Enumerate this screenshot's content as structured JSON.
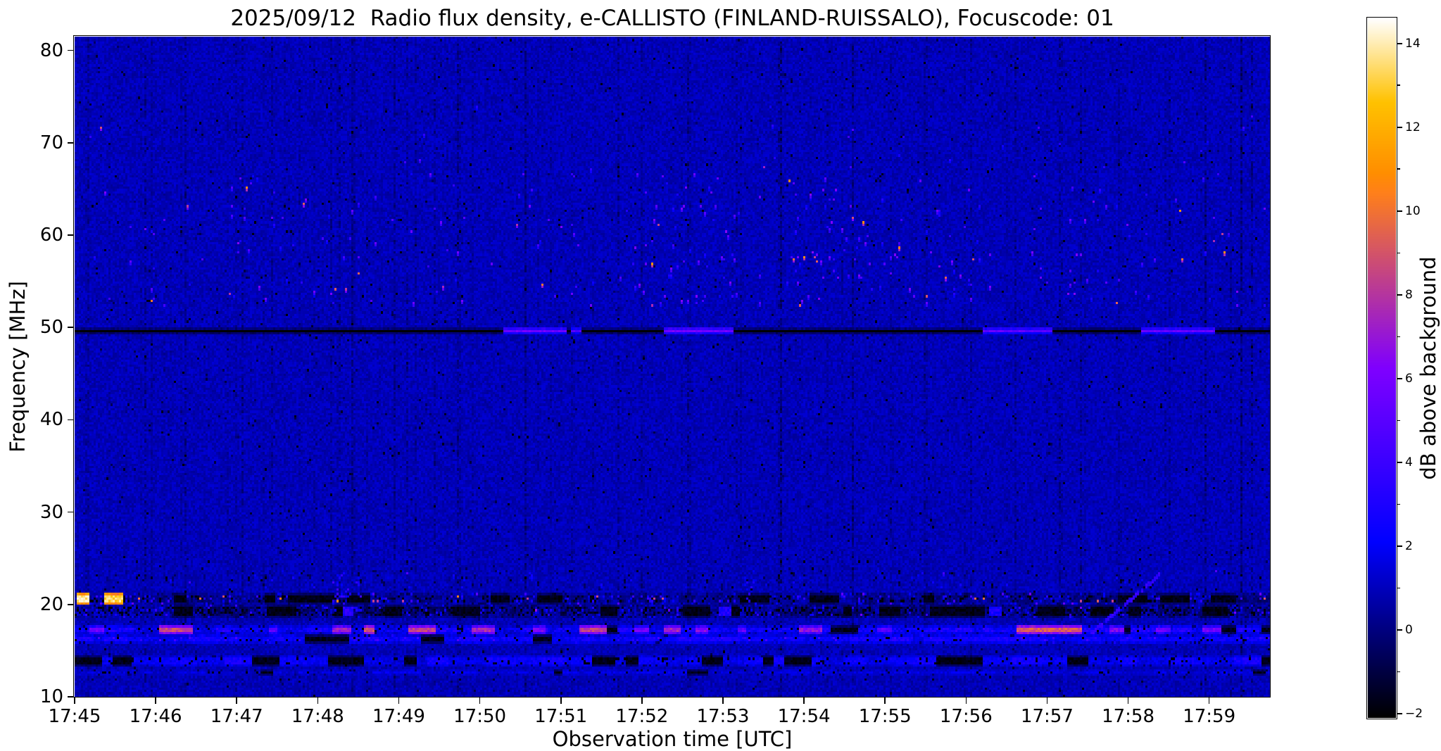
{
  "figure": {
    "background": "#ffffff",
    "text_color": "#000000"
  },
  "chart_data": {
    "type": "heatmap",
    "title": "2025/09/12  Radio flux density, e-CALLISTO (FINLAND-RUISSALO), Focuscode: 01",
    "xlabel": "Observation time [UTC]",
    "ylabel": "Frequency [MHz]",
    "x_tick_labels": [
      "17:45",
      "17:46",
      "17:47",
      "17:48",
      "17:49",
      "17:50",
      "17:51",
      "17:52",
      "17:53",
      "17:54",
      "17:55",
      "17:56",
      "17:57",
      "17:58",
      "17:59"
    ],
    "x_tick_minutes": [
      0,
      1,
      2,
      3,
      4,
      5,
      6,
      7,
      8,
      9,
      10,
      11,
      12,
      13,
      14
    ],
    "x_range_minutes": [
      0,
      14.75
    ],
    "y_tick_labels": [
      10,
      20,
      30,
      40,
      50,
      60,
      70,
      80
    ],
    "y_range_mhz": [
      10,
      81.5
    ],
    "grid": "off",
    "legend": "none",
    "colorbar": {
      "label": "dB above background",
      "tick_labels": [
        14,
        12,
        10,
        8,
        6,
        4,
        2,
        0,
        -2
      ],
      "minor_tick_step": 1,
      "vmin": -2.1,
      "vmax": 14.6,
      "colormap": "gnuplot2"
    },
    "spectrogram": {
      "seed": 1337,
      "grid_cols": 566,
      "grid_rows": 286,
      "background_value": 0.9,
      "noise_amplitude": 0.5,
      "dark_speckle_prob": 0.012,
      "column_artifacts": {
        "count": 80,
        "min_strength": 0.2,
        "max_strength": 1.0,
        "row_prob": 0.5
      },
      "dark_columns": [
        {
          "m": 0.95,
          "strength": 0.5
        },
        {
          "m": 3.42,
          "strength": 0.8
        },
        {
          "m": 5.55,
          "strength": 1.0
        },
        {
          "m": 9.6,
          "strength": 0.45
        },
        {
          "m": 12.9,
          "strength": 0.5
        }
      ],
      "speckle_regions": [
        {
          "f_min": 52.5,
          "f_max": 66.8,
          "per_col_prob": 0.55,
          "max_extra_dots": 2,
          "v_min": 2.2,
          "v_max": 6.5,
          "hot_prob": 0.1,
          "hot_v_min": 7.5,
          "hot_v_max": 11.5,
          "cluster_scale": 26
        },
        {
          "f_min": 66.8,
          "f_max": 74.0,
          "per_col_prob": 0.05,
          "max_extra_dots": 0,
          "v_min": 2.2,
          "v_max": 5.0,
          "hot_prob": 0.05,
          "hot_v_min": 7.0,
          "hot_v_max": 9.0,
          "cluster_scale": 40
        },
        {
          "f_min": 21.8,
          "f_max": 23.6,
          "per_col_prob": 0.45,
          "max_extra_dots": 1,
          "v_min": -1.8,
          "v_max": 2.6,
          "hot_prob": 0.01,
          "hot_v_min": 4.0,
          "hot_v_max": 6.0,
          "cluster_scale": 18
        }
      ],
      "rfi_line": {
        "f_center": 49.7,
        "base_value": -2.5,
        "bright_segments": [
          [
            5.28,
            6.08,
            5.6
          ],
          [
            6.12,
            6.26,
            4.8
          ],
          [
            7.28,
            8.12,
            5.9
          ],
          [
            11.2,
            12.08,
            5.3
          ],
          [
            13.18,
            14.08,
            5.5
          ]
        ]
      },
      "bands": [
        {
          "f_min": 20.1,
          "f_max": 21.05,
          "base_value": 0.1,
          "lf_amp": 0.6,
          "noise": 0.7,
          "dark_prob": 0.12,
          "dark_run_thresh": 0.22,
          "dot_prob": 0.1,
          "dot_v_min": 1.5,
          "dot_v_max": 4.0,
          "hot_prob": 0.02,
          "hot_v_min": 8.0,
          "hot_v_max": 10.5,
          "segments": [
            [
              0.02,
              0.18,
              13.6
            ],
            [
              0.35,
              0.6,
              13.2
            ]
          ]
        },
        {
          "f_min": 18.45,
          "f_max": 19.85,
          "base_value": -0.1,
          "lf_amp": 0.8,
          "noise": 0.9,
          "dark_prob": 0.2,
          "dark_run_thresh": 0.3,
          "dot_prob": 0.05,
          "dot_v_min": 1.5,
          "dot_v_max": 3.8,
          "hot_prob": 0.004,
          "hot_v_min": 5.0,
          "hot_v_max": 7.0,
          "segments": [
            [
              3.3,
              3.44,
              3.2
            ],
            [
              7.95,
              8.1,
              3.0
            ],
            [
              11.3,
              11.44,
              2.8
            ]
          ]
        },
        {
          "f_min": 16.75,
          "f_max": 17.65,
          "base_value": 2.3,
          "lf_amp": 0.8,
          "noise": 0.8,
          "dark_prob": 0.08,
          "dark_run_thresh": 0.13,
          "dot_prob": 0.0,
          "dot_v_min": 0,
          "dot_v_max": 0,
          "hot_prob": 0.0,
          "hot_v_min": 0,
          "hot_v_max": 0,
          "segments": [
            [
              0.17,
              0.35,
              5.5
            ],
            [
              1.04,
              1.44,
              8.6
            ],
            [
              2.38,
              2.5,
              5.2
            ],
            [
              3.17,
              3.4,
              7.2
            ],
            [
              3.57,
              3.69,
              9.0
            ],
            [
              4.11,
              4.44,
              8.2
            ],
            [
              4.9,
              5.18,
              7.6
            ],
            [
              5.64,
              5.82,
              6.2
            ],
            [
              6.22,
              6.57,
              8.4
            ],
            [
              6.91,
              7.08,
              5.6
            ],
            [
              7.26,
              7.49,
              7.4
            ],
            [
              7.66,
              7.83,
              6.4
            ],
            [
              8.18,
              8.3,
              5.2
            ],
            [
              8.93,
              9.22,
              6.8
            ],
            [
              9.9,
              10.08,
              5.2
            ],
            [
              11.64,
              12.44,
              9.2
            ],
            [
              12.79,
              12.96,
              6.2
            ],
            [
              13.36,
              13.53,
              5.6
            ],
            [
              13.94,
              14.17,
              5.8
            ]
          ]
        },
        {
          "f_min": 15.72,
          "f_max": 16.42,
          "base_value": 2.4,
          "lf_amp": 0.6,
          "noise": 0.6,
          "dark_prob": 0.04,
          "dark_run_thresh": 0.05,
          "dot_prob": 0.05,
          "dot_v_min": 3.2,
          "dot_v_max": 4.6,
          "hot_prob": 0.0,
          "hot_v_min": 0,
          "hot_v_max": 0,
          "segments": []
        },
        {
          "f_min": 13.15,
          "f_max": 14.3,
          "base_value": 1.9,
          "lf_amp": 0.8,
          "noise": 0.55,
          "dark_prob": 0.1,
          "dark_run_thresh": 0.2,
          "dot_prob": 0.0,
          "dot_v_min": 0,
          "dot_v_max": 0,
          "hot_prob": 0.0,
          "hot_v_min": 0,
          "hot_v_max": 0,
          "segments": []
        },
        {
          "f_min": 12.3,
          "f_max": 12.85,
          "base_value": 1.4,
          "lf_amp": 0.5,
          "noise": 0.5,
          "dark_prob": 0.06,
          "dark_run_thresh": 0.08,
          "dot_prob": 0.0,
          "dot_v_min": 0,
          "dot_v_max": 0,
          "hot_prob": 0.0,
          "hot_v_min": 0,
          "hot_v_max": 0,
          "segments": []
        }
      ],
      "diagonals": [
        {
          "m0": 12.55,
          "f0": 16.9,
          "m1": 13.4,
          "f1": 23.2,
          "value": 3.6,
          "width_rows": 2,
          "gap_prob": 0.18
        }
      ],
      "patches": [
        {
          "m0": 3.18,
          "m1": 3.55,
          "f_min": 19.0,
          "f_max": 23.2,
          "prob": 0.09,
          "v_min": 1.8,
          "v_max": 4.2
        },
        {
          "m0": 8.3,
          "m1": 8.5,
          "f_min": 19.0,
          "f_max": 22.5,
          "prob": 0.07,
          "v_min": 1.6,
          "v_max": 3.6
        }
      ]
    }
  }
}
